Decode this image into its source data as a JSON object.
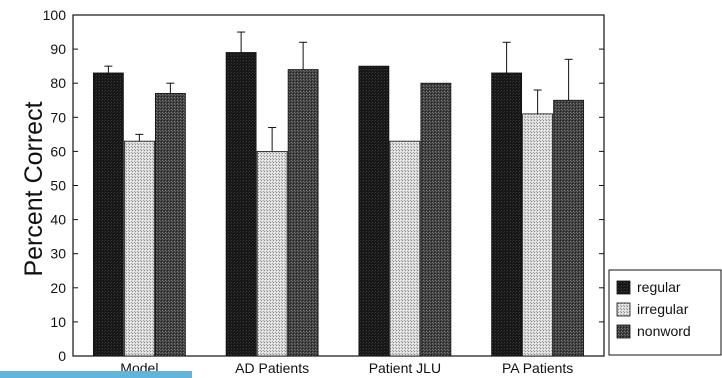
{
  "chart_data": {
    "type": "bar",
    "ylabel": "Percent Correct",
    "xlabel": "",
    "ylim": [
      0,
      100
    ],
    "yticks": [
      0,
      10,
      20,
      30,
      40,
      50,
      60,
      70,
      80,
      90,
      100
    ],
    "categories": [
      "Model",
      "AD Patients",
      "Patient JLU",
      "PA Patients"
    ],
    "series": [
      {
        "name": "regular",
        "values": [
          83,
          89,
          85,
          83
        ],
        "errors": [
          2,
          6,
          null,
          9
        ],
        "pattern": "dark"
      },
      {
        "name": "irregular",
        "values": [
          63,
          60,
          63,
          71
        ],
        "errors": [
          2,
          7,
          null,
          7
        ],
        "pattern": "light"
      },
      {
        "name": "nonword",
        "values": [
          77,
          84,
          80,
          75
        ],
        "errors": [
          3,
          8,
          null,
          12
        ],
        "pattern": "medium"
      }
    ],
    "legend_position": "bottom-right",
    "colors": {
      "regular": "#141414",
      "irregular": "#d2d2d2",
      "nonword": "#444444"
    }
  }
}
